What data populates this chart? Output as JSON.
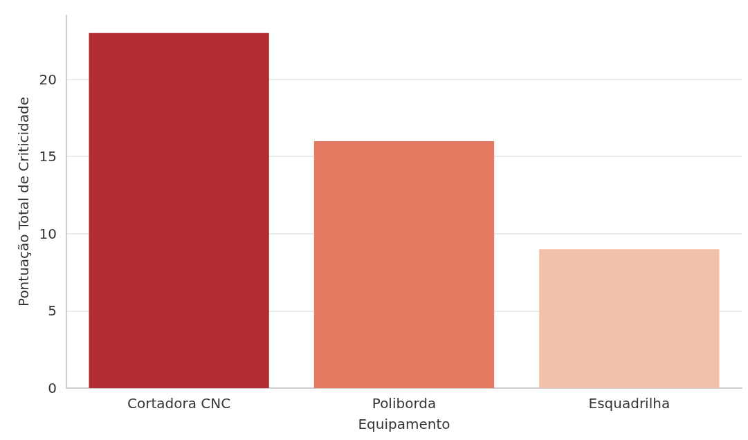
{
  "chart_data": {
    "type": "bar",
    "xlabel": "Equipamento",
    "ylabel": "Pontuação Total de Criticidade",
    "categories": [
      "Cortadora CNC",
      "Poliborda",
      "Esquadrilha"
    ],
    "values": [
      23,
      16,
      9
    ],
    "colors": [
      "#b32c32",
      "#e47a62",
      "#f0c0a9"
    ],
    "ylim": [
      0,
      24.15
    ],
    "yticks": [
      0,
      5,
      10,
      15,
      20
    ],
    "grid": "y"
  }
}
